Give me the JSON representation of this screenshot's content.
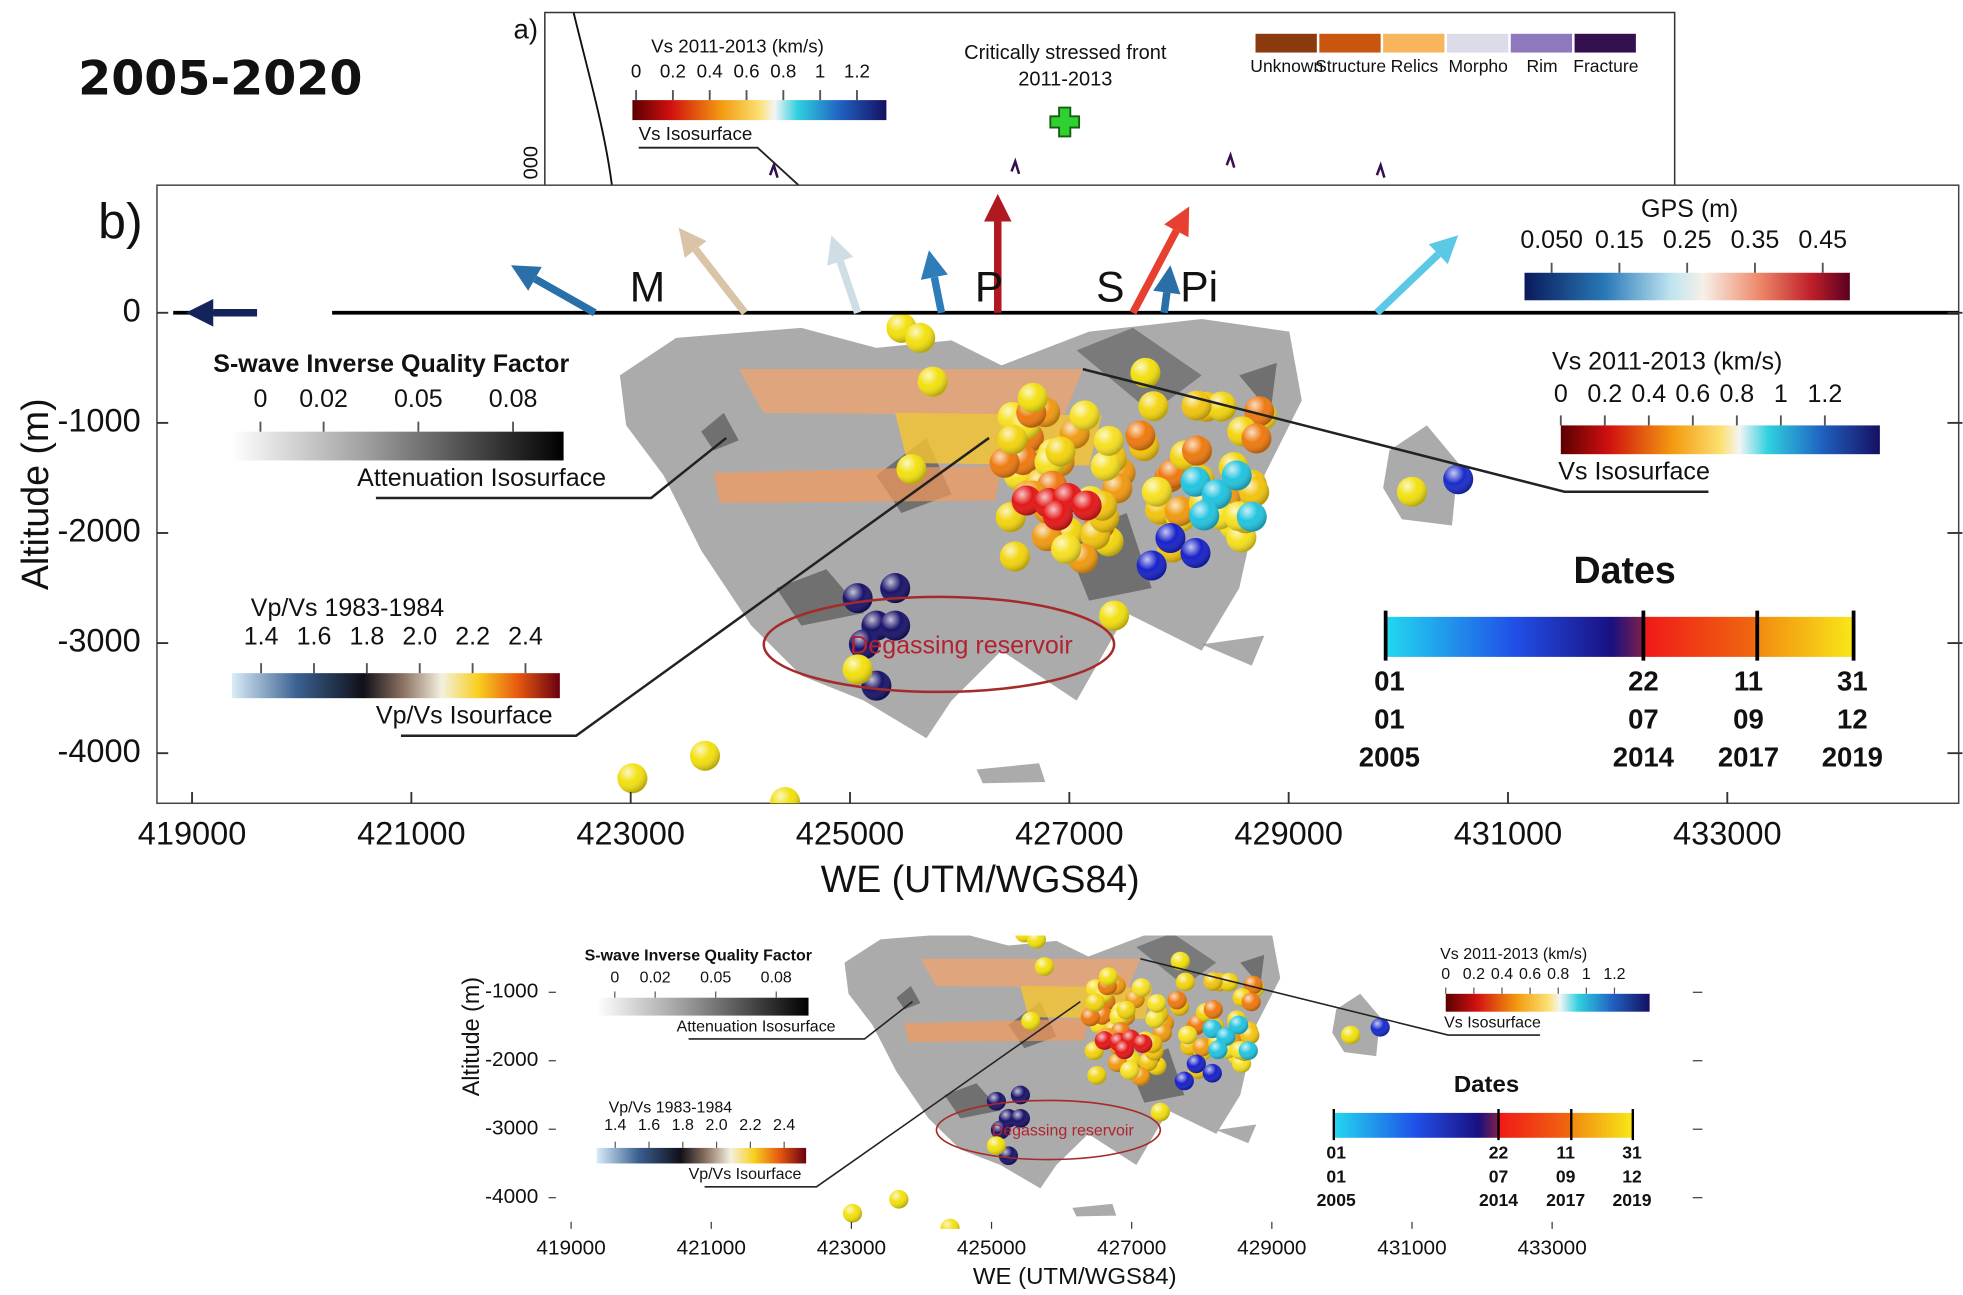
{
  "title": "2005-2020",
  "panel_a": {
    "label": "a)",
    "y_tick_fragment": "000",
    "vs": {
      "title": "Vs  2011-2013 (km/s)",
      "clim": [
        -0.02,
        1.36
      ],
      "ticks": [
        0,
        0.2,
        0.4,
        0.6,
        0.8,
        1,
        1.2
      ],
      "caption": "Vs Isosurface"
    },
    "front": [
      "Critically stressed front",
      "2011-2013"
    ],
    "legend": [
      {
        "name": "Unknown",
        "color": "#8b3a0e"
      },
      {
        "name": "Structure",
        "color": "#c8560f"
      },
      {
        "name": "Relics",
        "color": "#f8b55c"
      },
      {
        "name": "Morpho",
        "color": "#dcdce8"
      },
      {
        "name": "Rim",
        "color": "#8e78be"
      },
      {
        "name": "Fracture",
        "color": "#35104e"
      }
    ]
  },
  "panel_b": {
    "label": "b)",
    "gps": {
      "title": "GPS  (m)",
      "clim": [
        0.01,
        0.49
      ],
      "ticks": [
        {
          "value": 0.05,
          "label": "0.050"
        },
        0.15,
        0.25,
        0.35,
        0.45
      ]
    },
    "vents": [
      "M",
      "P",
      "S",
      "Pi"
    ],
    "ylabel": "Altitude (m)",
    "ylim": [
      -4455,
      1159
    ],
    "yticks": [
      0,
      -1000,
      -2000,
      -3000,
      -4000
    ],
    "xlabel": "WE (UTM/WGS84)",
    "xlim": [
      418680,
      435110
    ],
    "xticks": [
      419000,
      421000,
      423000,
      425000,
      427000,
      429000,
      431000,
      433000
    ],
    "attenuation": {
      "title": "S-wave Inverse Quality Factor",
      "clim": [
        -0.009,
        0.096
      ],
      "ticks": [
        0,
        0.02,
        0.05,
        0.08
      ],
      "caption": "Attenuation Isosurface"
    },
    "vs": {
      "title": "Vs  2011-2013 (km/s)",
      "clim": [
        0,
        1.45
      ],
      "ticks": [
        0,
        0.2,
        0.4,
        0.6,
        0.8,
        1,
        1.2
      ],
      "caption": "Vs Isosurface"
    },
    "vpvs": {
      "title": "Vp/Vs 1983-1984",
      "clim": [
        1.29,
        2.53
      ],
      "ticks": [
        1.4,
        1.6,
        1.8,
        {
          "value": 2,
          "label": "2.0"
        },
        2.2,
        2.4
      ],
      "caption": "Vp/Vs Isourface"
    },
    "reservoir": "Degassing reservoir",
    "dates": {
      "title": "Dates",
      "ticks": [
        [
          "01",
          "01",
          "2005"
        ],
        [
          "22",
          "07",
          "2014"
        ],
        [
          "11",
          "09",
          "2017"
        ],
        [
          "31",
          "12",
          "2019"
        ]
      ]
    }
  },
  "panel_c": {
    "ylabel": "Altitude (m)",
    "ylim": [
      -4455,
      -170
    ],
    "yticks": [
      -1000,
      -2000,
      -3000,
      -4000
    ],
    "xlabel": "WE (UTM/WGS84)",
    "xlim": [
      418680,
      435110
    ],
    "xticks": [
      419000,
      421000,
      423000,
      425000,
      427000,
      429000,
      431000,
      433000
    ],
    "attenuation": {
      "title": "S-wave Inverse Quality Factor",
      "clim": [
        -0.009,
        0.096
      ],
      "ticks": [
        0,
        0.02,
        0.05,
        0.08
      ],
      "caption": "Attenuation Isosurface"
    },
    "vs": {
      "title": "Vs  2011-2013 (km/s)",
      "clim": [
        0,
        1.45
      ],
      "ticks": [
        0,
        0.2,
        0.4,
        0.6,
        0.8,
        1,
        1.2
      ],
      "caption": "Vs Isosurface"
    },
    "vpvs": {
      "title": "Vp/Vs 1983-1984",
      "clim": [
        1.29,
        2.53
      ],
      "ticks": [
        1.4,
        1.6,
        1.8,
        {
          "value": 2,
          "label": "2.0"
        },
        2.2,
        2.4
      ],
      "caption": "Vp/Vs Isourface"
    },
    "reservoir": "Degassing reservoir",
    "dates": {
      "title": "Dates",
      "ticks": [
        [
          "01",
          "01",
          "2005"
        ],
        [
          "22",
          "07",
          "2014"
        ],
        [
          "11",
          "09",
          "2017"
        ],
        [
          "31",
          "12",
          "2019"
        ]
      ]
    }
  }
}
